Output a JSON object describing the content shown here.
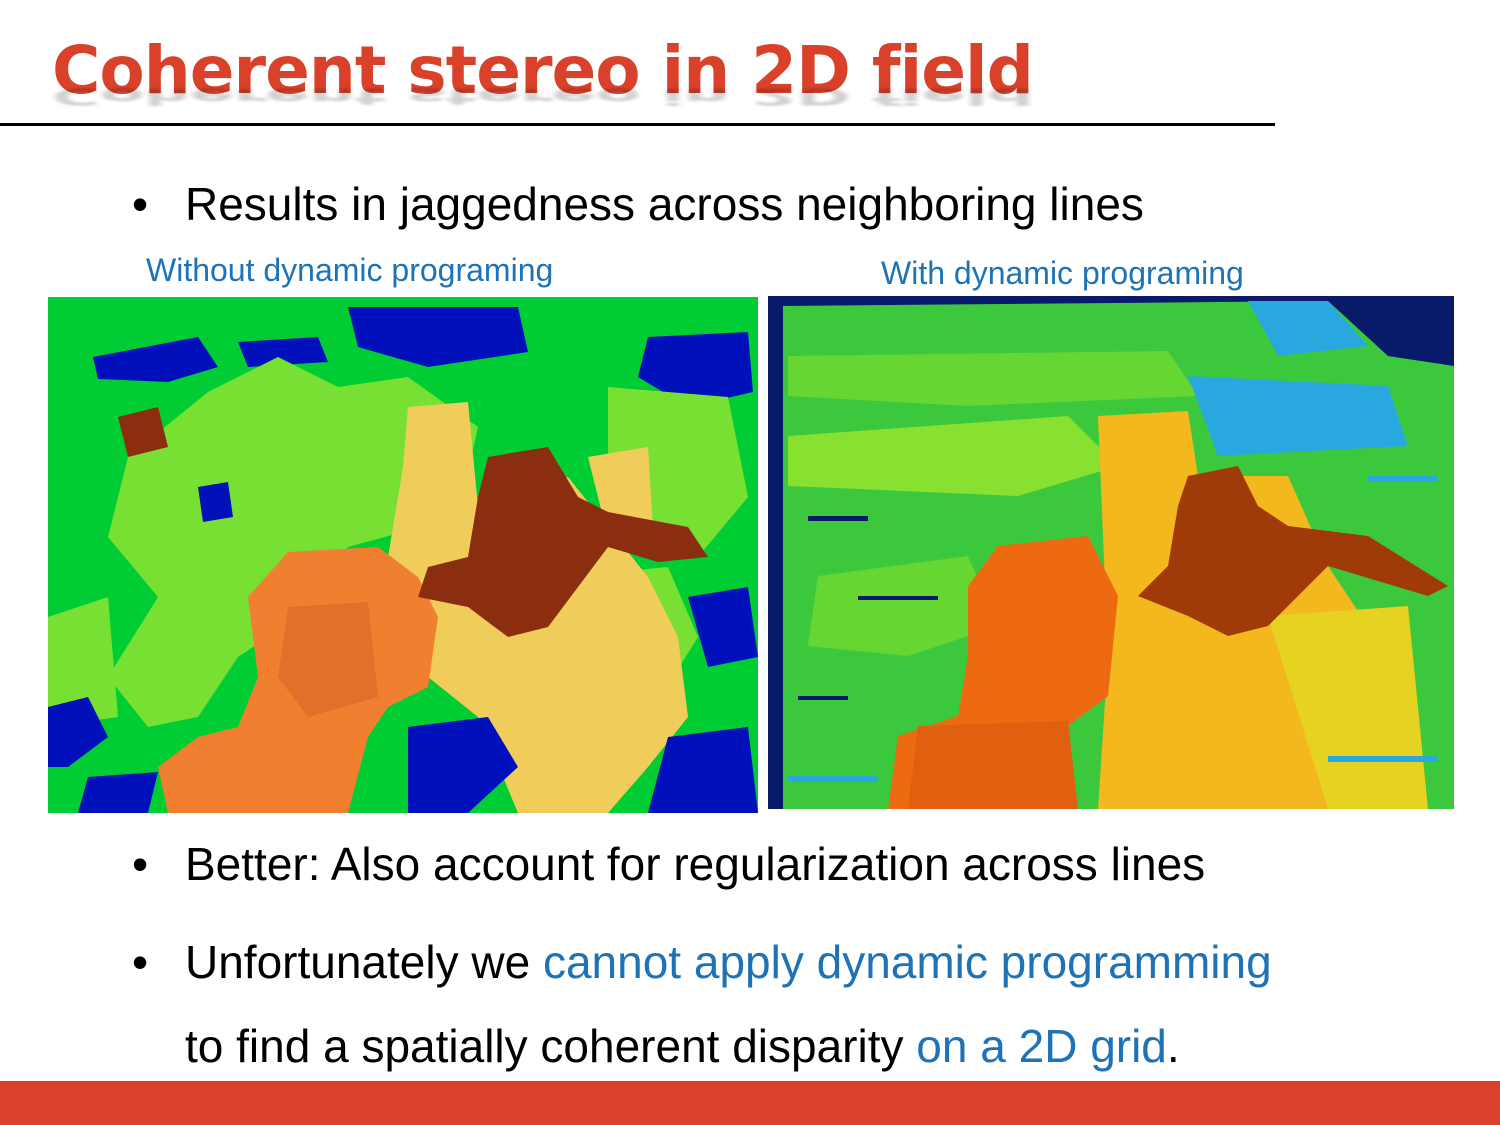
{
  "colors": {
    "title": "#D9412A",
    "accent_text": "#1E73B6",
    "body_text": "#000000",
    "footer_bar": "#D9412A"
  },
  "slide": {
    "title": "Coherent stereo in 2D field"
  },
  "bullets": {
    "b1": "Results in jaggedness across neighboring lines",
    "b2": "Better: Also account for regularization across lines",
    "b3": {
      "part1": "Unfortunately we ",
      "part2_highlight": "cannot apply dynamic programming",
      "line2_part1": "to find a spatially coherent disparity ",
      "line2_part2_highlight": "on a 2D grid",
      "line2_part3": "."
    },
    "marker": "•"
  },
  "figures": {
    "left_caption": "Without dynamic programing",
    "right_caption": "With dynamic programing",
    "left_icon": "disparity-map-image",
    "right_icon": "disparity-map-image"
  }
}
